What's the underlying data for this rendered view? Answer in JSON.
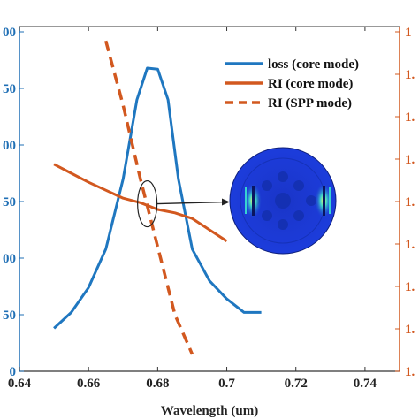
{
  "chart_data": {
    "type": "line",
    "xlabel": "Wavelength (um)",
    "x_ticks": [
      "0.64",
      "0.66",
      "0.68",
      "0.7",
      "0.72",
      "0.74"
    ],
    "xlim": [
      0.64,
      0.75
    ],
    "left_axis": {
      "color": "#1f6fb5",
      "ticks_visible": [
        "00",
        "50",
        "00",
        "50",
        "00",
        "50",
        "0"
      ],
      "ylim": [
        0,
        300
      ]
    },
    "right_axis": {
      "color": "#d2581f",
      "ticks_visible": [
        "1",
        "1.",
        "1.",
        "1.",
        "1.",
        "1.",
        "1.",
        "1.",
        "1."
      ]
    },
    "series": [
      {
        "name": "loss (core mode)",
        "color": "#1f77c0",
        "style": "solid",
        "axis": "left",
        "x": [
          0.65,
          0.655,
          0.66,
          0.665,
          0.67,
          0.674,
          0.677,
          0.68,
          0.683,
          0.686,
          0.69,
          0.695,
          0.7,
          0.705,
          0.71
        ],
        "y": [
          38,
          52,
          74,
          108,
          170,
          240,
          268,
          267,
          240,
          170,
          108,
          80,
          64,
          52,
          52
        ]
      },
      {
        "name": "RI (core mode)",
        "color": "#d2581f",
        "style": "solid",
        "axis": "left",
        "x": [
          0.65,
          0.655,
          0.66,
          0.665,
          0.67,
          0.675,
          0.68,
          0.685,
          0.69,
          0.695,
          0.7
        ],
        "y": [
          183,
          175,
          167,
          160,
          153,
          149,
          143,
          140,
          135,
          125,
          115
        ]
      },
      {
        "name": "RI (SPP mode)",
        "color": "#d2581f",
        "style": "dashed",
        "axis": "left",
        "x": [
          0.665,
          0.67,
          0.675,
          0.68,
          0.685,
          0.69
        ],
        "y": [
          292,
          235,
          170,
          110,
          50,
          15
        ]
      }
    ],
    "annotations": [
      {
        "type": "ellipse",
        "label": "",
        "near_x": 0.677,
        "near_y": 148
      },
      {
        "type": "arrow",
        "from": "ellipse",
        "to": "mode-field-inset"
      }
    ],
    "inset": {
      "name": "mode field distribution",
      "shape": "circle",
      "colors": [
        "#1e3fd6",
        "#0a1f9e",
        "#37d4d0",
        "#e8f06a"
      ]
    },
    "legend": {
      "position": "top-right"
    },
    "grid": false
  }
}
